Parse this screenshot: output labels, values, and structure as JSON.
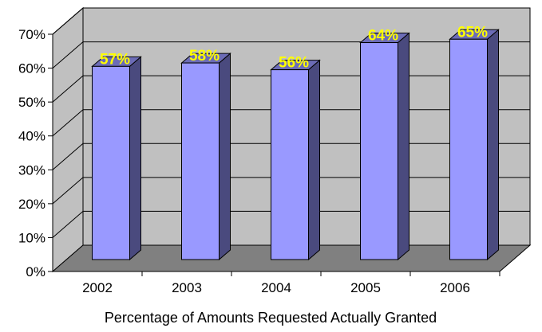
{
  "chart_data": {
    "type": "bar",
    "categories": [
      "2002",
      "2003",
      "2004",
      "2005",
      "2006"
    ],
    "values": [
      57,
      58,
      56,
      64,
      65
    ],
    "data_labels": [
      "57%",
      "58%",
      "56%",
      "64%",
      "65%"
    ],
    "title": "",
    "xlabel": "Percentage of Amounts Requested Actually Granted",
    "ylabel": "",
    "ylim": [
      0,
      70
    ],
    "y_ticks": [
      0,
      10,
      20,
      30,
      40,
      50,
      60,
      70
    ],
    "y_tick_labels": [
      "0%",
      "10%",
      "20%",
      "30%",
      "40%",
      "50%",
      "60%",
      "70%"
    ],
    "grid": true,
    "legend": "none",
    "style": "3d-column",
    "colors": {
      "bar_front": "#9999ff",
      "bar_side": "#4a4a7e",
      "bar_top": "#6c6cb6",
      "back_wall": "#c0c0c0",
      "floor": "#808080",
      "data_label": "#ffff00"
    }
  }
}
